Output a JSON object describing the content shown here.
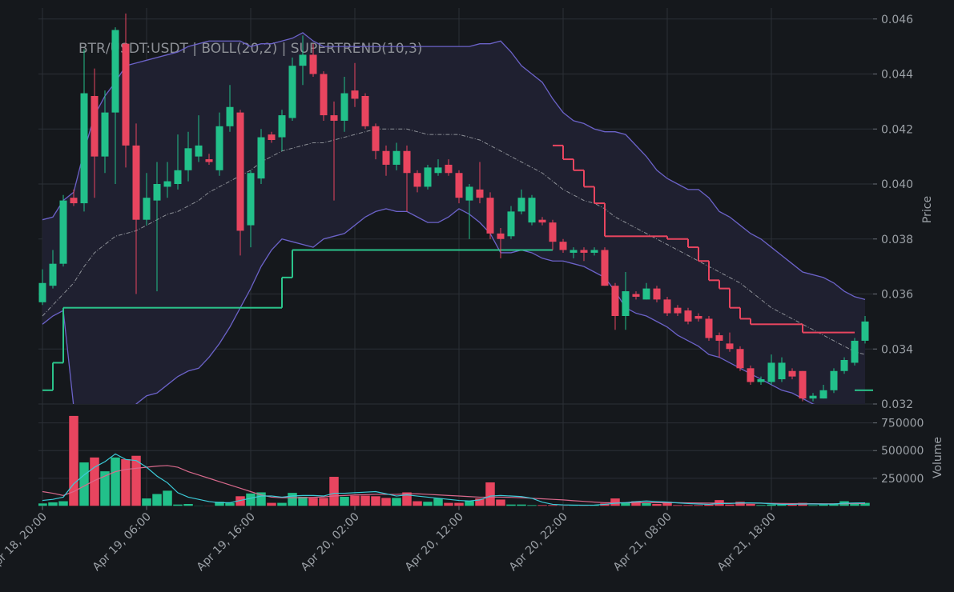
{
  "chart_data": {
    "type": "candlestick",
    "title": "BTR/USDT:USDT | BOLL(20,2) | SUPERTREND(10,3)",
    "ylabel": "Price",
    "x": [
      "Apr 18, 20:00",
      "Apr 18, 21:00",
      "Apr 18, 22:00",
      "Apr 18, 23:00",
      "Apr 19, 00:00",
      "Apr 19, 01:00",
      "Apr 19, 02:00",
      "Apr 19, 03:00",
      "Apr 19, 04:00",
      "Apr 19, 05:00",
      "Apr 19, 06:00",
      "Apr 19, 07:00",
      "Apr 19, 08:00",
      "Apr 19, 09:00",
      "Apr 19, 10:00",
      "Apr 19, 11:00",
      "Apr 19, 12:00",
      "Apr 19, 13:00",
      "Apr 19, 14:00",
      "Apr 19, 15:00",
      "Apr 19, 16:00",
      "Apr 19, 17:00",
      "Apr 19, 18:00",
      "Apr 19, 19:00",
      "Apr 19, 20:00",
      "Apr 19, 21:00",
      "Apr 19, 22:00",
      "Apr 19, 23:00",
      "Apr 20, 00:00",
      "Apr 20, 01:00",
      "Apr 20, 02:00",
      "Apr 20, 03:00",
      "Apr 20, 04:00",
      "Apr 20, 05:00",
      "Apr 20, 06:00",
      "Apr 20, 07:00",
      "Apr 20, 08:00",
      "Apr 20, 09:00",
      "Apr 20, 10:00",
      "Apr 20, 11:00",
      "Apr 20, 12:00",
      "Apr 20, 13:00",
      "Apr 20, 14:00",
      "Apr 20, 15:00",
      "Apr 20, 16:00",
      "Apr 20, 17:00",
      "Apr 20, 18:00",
      "Apr 20, 19:00",
      "Apr 20, 20:00",
      "Apr 20, 21:00",
      "Apr 20, 22:00",
      "Apr 20, 23:00",
      "Apr 21, 00:00",
      "Apr 21, 01:00",
      "Apr 21, 02:00",
      "Apr 21, 03:00",
      "Apr 21, 04:00",
      "Apr 21, 05:00",
      "Apr 21, 06:00",
      "Apr 21, 07:00",
      "Apr 21, 08:00",
      "Apr 21, 09:00",
      "Apr 21, 10:00",
      "Apr 21, 11:00",
      "Apr 21, 12:00",
      "Apr 21, 13:00",
      "Apr 21, 14:00",
      "Apr 21, 15:00",
      "Apr 21, 16:00",
      "Apr 21, 17:00",
      "Apr 21, 18:00",
      "Apr 21, 19:00",
      "Apr 21, 20:00",
      "Apr 21, 21:00",
      "Apr 21, 22:00",
      "Apr 21, 23:00",
      "Apr 22, 00:00",
      "Apr 22, 01:00",
      "Apr 22, 02:00",
      "Apr 22, 03:00"
    ],
    "xticks": [
      "Apr 18, 20:00",
      "Apr 19, 06:00",
      "Apr 19, 16:00",
      "Apr 20, 02:00",
      "Apr 20, 12:00",
      "Apr 20, 22:00",
      "Apr 21, 08:00",
      "Apr 21, 18:00"
    ],
    "open": [
      0.0357,
      0.0363,
      0.0371,
      0.0395,
      0.0393,
      0.0432,
      0.041,
      0.0426,
      0.0451,
      0.0414,
      0.0387,
      0.0394,
      0.0399,
      0.04,
      0.0405,
      0.041,
      0.0409,
      0.0405,
      0.0421,
      0.0426,
      0.0385,
      0.0402,
      0.0418,
      0.0417,
      0.0424,
      0.0443,
      0.0447,
      0.044,
      0.0425,
      0.0423,
      0.0434,
      0.0432,
      0.0421,
      0.0412,
      0.0407,
      0.0412,
      0.0404,
      0.0399,
      0.0404,
      0.0407,
      0.0404,
      0.0394,
      0.0398,
      0.0395,
      0.0382,
      0.0381,
      0.039,
      0.0386,
      0.0387,
      0.0386,
      0.0379,
      0.0375,
      0.0376,
      0.0375,
      0.0376,
      0.0363,
      0.0352,
      0.036,
      0.0358,
      0.0362,
      0.0358,
      0.0355,
      0.0354,
      0.0352,
      0.0351,
      0.0345,
      0.0342,
      0.034,
      0.0333,
      0.0328,
      0.0328,
      0.0329,
      0.0332,
      0.0332,
      0.0322,
      0.0322,
      0.0325,
      0.0332,
      0.0335,
      0.0343
    ],
    "high": [
      0.0369,
      0.0376,
      0.0396,
      0.0398,
      0.0449,
      0.0442,
      0.0434,
      0.0457,
      0.0462,
      0.0422,
      0.0404,
      0.0408,
      0.0408,
      0.0418,
      0.0419,
      0.0425,
      0.0411,
      0.0426,
      0.0436,
      0.0427,
      0.0405,
      0.042,
      0.0419,
      0.0427,
      0.0446,
      0.0454,
      0.0451,
      0.0441,
      0.043,
      0.0439,
      0.0444,
      0.0433,
      0.0422,
      0.0414,
      0.0415,
      0.0414,
      0.0405,
      0.0407,
      0.0409,
      0.0409,
      0.0405,
      0.04,
      0.0408,
      0.0397,
      0.0384,
      0.0392,
      0.0398,
      0.0396,
      0.0388,
      0.0387,
      0.038,
      0.0377,
      0.0377,
      0.0377,
      0.0377,
      0.0364,
      0.0368,
      0.0361,
      0.0364,
      0.0363,
      0.0359,
      0.0356,
      0.0355,
      0.0353,
      0.0352,
      0.0346,
      0.0346,
      0.0341,
      0.0334,
      0.033,
      0.0338,
      0.0337,
      0.0333,
      0.0332,
      0.0324,
      0.0327,
      0.0333,
      0.0337,
      0.0344,
      0.0352
    ],
    "low": [
      0.0356,
      0.0362,
      0.037,
      0.0392,
      0.039,
      0.0395,
      0.0404,
      0.04,
      0.0406,
      0.036,
      0.0385,
      0.0361,
      0.0395,
      0.0398,
      0.0401,
      0.0408,
      0.0407,
      0.0403,
      0.0419,
      0.0374,
      0.0377,
      0.04,
      0.0415,
      0.0412,
      0.0423,
      0.0436,
      0.0439,
      0.0423,
      0.0394,
      0.0419,
      0.0428,
      0.042,
      0.0409,
      0.0403,
      0.0405,
      0.039,
      0.0397,
      0.0398,
      0.0403,
      0.0403,
      0.0393,
      0.038,
      0.0393,
      0.038,
      0.0373,
      0.038,
      0.0389,
      0.0385,
      0.0385,
      0.0376,
      0.0375,
      0.0373,
      0.0372,
      0.0374,
      0.0363,
      0.0347,
      0.0347,
      0.0358,
      0.0358,
      0.0357,
      0.0352,
      0.0352,
      0.0349,
      0.035,
      0.0343,
      0.0337,
      0.0339,
      0.0332,
      0.0327,
      0.0327,
      0.0327,
      0.0328,
      0.0329,
      0.0321,
      0.0321,
      0.0322,
      0.0324,
      0.0331,
      0.0334,
      0.0342
    ],
    "close": [
      0.0364,
      0.0371,
      0.0394,
      0.0393,
      0.0433,
      0.041,
      0.0426,
      0.0456,
      0.0414,
      0.0387,
      0.0395,
      0.04,
      0.0401,
      0.0405,
      0.0413,
      0.0414,
      0.0408,
      0.0421,
      0.0428,
      0.0383,
      0.0404,
      0.0417,
      0.0416,
      0.0425,
      0.0443,
      0.0447,
      0.044,
      0.0425,
      0.0423,
      0.0433,
      0.0431,
      0.0421,
      0.0412,
      0.0407,
      0.0412,
      0.0404,
      0.0399,
      0.0406,
      0.0406,
      0.0404,
      0.0395,
      0.0399,
      0.0395,
      0.0382,
      0.038,
      0.039,
      0.0395,
      0.0395,
      0.0386,
      0.0379,
      0.0376,
      0.0376,
      0.0375,
      0.0376,
      0.0363,
      0.0352,
      0.0361,
      0.0359,
      0.0362,
      0.0358,
      0.0353,
      0.0353,
      0.035,
      0.0351,
      0.0344,
      0.0343,
      0.034,
      0.0333,
      0.0328,
      0.0329,
      0.0335,
      0.0335,
      0.033,
      0.0322,
      0.0323,
      0.0325,
      0.0332,
      0.0336,
      0.0343,
      0.035
    ],
    "up_color": "#22c08a",
    "down_color": "#e8455f",
    "ylim": [
      0.032,
      0.0464
    ],
    "yticks": [
      0.032,
      0.034,
      0.036,
      0.038,
      {
        "value": 0.04,
        "label": "0.040"
      },
      0.042,
      0.044,
      0.046
    ],
    "grid": true,
    "bollinger": {
      "color": "#6b62c8",
      "mid_color": "#8c8f96",
      "fill": "#1f2030",
      "upper": [
        0.0387,
        0.0388,
        0.0394,
        0.0397,
        0.0412,
        0.0425,
        0.0432,
        0.0437,
        0.0443,
        0.0444,
        0.0445,
        0.0446,
        0.0447,
        0.0448,
        0.045,
        0.0451,
        0.0452,
        0.0452,
        0.0452,
        0.0452,
        0.045,
        0.0451,
        0.0451,
        0.0452,
        0.0453,
        0.0455,
        0.0452,
        0.045,
        0.045,
        0.045,
        0.045,
        0.045,
        0.045,
        0.045,
        0.045,
        0.045,
        0.045,
        0.045,
        0.045,
        0.045,
        0.045,
        0.045,
        0.0451,
        0.0451,
        0.0452,
        0.0448,
        0.0443,
        0.044,
        0.0437,
        0.0431,
        0.0426,
        0.0423,
        0.0422,
        0.042,
        0.0419,
        0.0419,
        0.0418,
        0.0414,
        0.041,
        0.0405,
        0.0402,
        0.04,
        0.0398,
        0.0398,
        0.0395,
        0.039,
        0.0388,
        0.0385,
        0.0382,
        0.038,
        0.0377,
        0.0374,
        0.0371,
        0.0368,
        0.0367,
        0.0366,
        0.0364,
        0.0361,
        0.0359,
        0.0358
      ],
      "middle": [
        0.0352,
        0.0356,
        0.036,
        0.0364,
        0.037,
        0.0375,
        0.0378,
        0.0381,
        0.0382,
        0.0383,
        0.0385,
        0.0387,
        0.0389,
        0.039,
        0.0392,
        0.0394,
        0.0397,
        0.0399,
        0.0401,
        0.0403,
        0.0405,
        0.0408,
        0.041,
        0.0412,
        0.0413,
        0.0414,
        0.0415,
        0.0415,
        0.0416,
        0.0417,
        0.0418,
        0.0419,
        0.042,
        0.042,
        0.042,
        0.042,
        0.0419,
        0.0418,
        0.0418,
        0.0418,
        0.0418,
        0.0417,
        0.0416,
        0.0414,
        0.0412,
        0.041,
        0.0408,
        0.0406,
        0.0404,
        0.0401,
        0.0398,
        0.0396,
        0.0394,
        0.0393,
        0.0391,
        0.0388,
        0.0386,
        0.0384,
        0.0382,
        0.038,
        0.0378,
        0.0376,
        0.0374,
        0.0372,
        0.037,
        0.0368,
        0.0366,
        0.0364,
        0.0361,
        0.0358,
        0.0355,
        0.0353,
        0.0351,
        0.0349,
        0.0347,
        0.0345,
        0.0343,
        0.0341,
        0.0339,
        0.0338
      ],
      "lower": [
        0.0349,
        0.0352,
        0.0354,
        0.0319,
        0.0312,
        0.0309,
        0.031,
        0.0313,
        0.0316,
        0.032,
        0.0323,
        0.0324,
        0.0327,
        0.033,
        0.0332,
        0.0333,
        0.0337,
        0.0342,
        0.0348,
        0.0355,
        0.0362,
        0.037,
        0.0376,
        0.038,
        0.0379,
        0.0378,
        0.0377,
        0.038,
        0.0381,
        0.0382,
        0.0385,
        0.0388,
        0.039,
        0.0391,
        0.039,
        0.039,
        0.0388,
        0.0386,
        0.0386,
        0.0388,
        0.0391,
        0.0389,
        0.0386,
        0.0382,
        0.0375,
        0.0375,
        0.0376,
        0.0375,
        0.0373,
        0.0372,
        0.0372,
        0.0371,
        0.037,
        0.0368,
        0.0366,
        0.0361,
        0.0355,
        0.0353,
        0.0352,
        0.035,
        0.0348,
        0.0345,
        0.0343,
        0.0341,
        0.0338,
        0.0337,
        0.0335,
        0.0333,
        0.0331,
        0.0329,
        0.0327,
        0.0325,
        0.0324,
        0.0322,
        0.032,
        0.0319,
        0.0318,
        0.0317,
        0.0316,
        0.0315
      ]
    },
    "supertrend": [
      {
        "color": "#2bc48b",
        "values": [
          0.0325,
          0.0335,
          0.0355,
          0.0355,
          0.0355,
          0.0355,
          0.0355,
          0.0355,
          0.0355,
          0.0355,
          0.0355,
          0.0355,
          0.0355,
          0.0355,
          0.0355,
          0.0355,
          0.0355,
          0.0355,
          0.0355,
          0.0355,
          0.0355,
          0.0355,
          0.0355,
          0.0366,
          0.0376,
          0.0376,
          0.0376,
          0.0376,
          0.0376,
          0.0376,
          0.0376,
          0.0376,
          0.0376,
          0.0376,
          0.0376,
          0.0376,
          0.0376,
          0.0376,
          0.0376,
          0.0376,
          0.0376,
          0.0376,
          0.0376,
          0.0376,
          0.0376,
          0.0376,
          0.0376,
          0.0376,
          0.0376,
          null,
          null,
          null,
          null,
          null,
          null,
          null,
          null,
          null,
          null,
          null,
          null,
          null,
          null,
          null,
          null,
          null,
          null,
          null,
          null,
          null,
          null,
          null,
          null,
          null,
          null,
          null,
          null,
          null,
          0.0325,
          0.0325
        ]
      },
      {
        "color": "#e8455f",
        "values": [
          null,
          null,
          null,
          null,
          null,
          null,
          null,
          null,
          null,
          null,
          null,
          null,
          null,
          null,
          null,
          null,
          null,
          null,
          null,
          null,
          null,
          null,
          null,
          null,
          null,
          null,
          null,
          null,
          null,
          null,
          null,
          null,
          null,
          null,
          null,
          null,
          null,
          null,
          null,
          null,
          null,
          null,
          null,
          null,
          null,
          null,
          null,
          null,
          null,
          0.0414,
          0.0409,
          0.0405,
          0.0399,
          0.0393,
          0.0381,
          0.0381,
          0.0381,
          0.0381,
          0.0381,
          0.0381,
          0.038,
          0.038,
          0.0377,
          0.0372,
          0.0365,
          0.0362,
          0.0355,
          0.0351,
          0.0349,
          0.0349,
          0.0349,
          0.0349,
          0.0349,
          0.0346,
          0.0346,
          0.0346,
          0.0346,
          0.0346,
          null,
          null
        ]
      }
    ],
    "volume": {
      "ylabel": "Volume",
      "ylim": [
        0,
        870000
      ],
      "yticks": [
        250000,
        500000,
        750000
      ],
      "values": [
        25000,
        35000,
        45000,
        815000,
        395000,
        440000,
        315000,
        440000,
        425000,
        455000,
        70000,
        110000,
        140000,
        15000,
        20000,
        5000,
        5000,
        40000,
        30000,
        90000,
        115000,
        125000,
        30000,
        30000,
        120000,
        85000,
        75000,
        75000,
        265000,
        85000,
        95000,
        95000,
        90000,
        75000,
        75000,
        125000,
        45000,
        40000,
        70000,
        30000,
        30000,
        45000,
        70000,
        215000,
        60000,
        15000,
        15000,
        10000,
        10000,
        10000,
        5000,
        5000,
        5000,
        10000,
        25000,
        70000,
        30000,
        45000,
        30000,
        20000,
        40000,
        10000,
        10000,
        10000,
        15000,
        55000,
        15000,
        40000,
        20000,
        10000,
        15000,
        15000,
        15000,
        30000,
        10000,
        15000,
        20000,
        45000,
        25000,
        30000
      ],
      "ma": [
        {
          "color": "#d9698c",
          "values": [
            130000,
            115000,
            95000,
            130000,
            180000,
            230000,
            270000,
            310000,
            330000,
            340000,
            350000,
            360000,
            365000,
            350000,
            310000,
            280000,
            250000,
            220000,
            190000,
            160000,
            130000,
            100000,
            80000,
            75000,
            75000,
            75000,
            78000,
            82000,
            90000,
            95000,
            100000,
            102000,
            105000,
            105000,
            105000,
            110000,
            110000,
            105000,
            100000,
            95000,
            90000,
            85000,
            80000,
            80000,
            80000,
            78000,
            75000,
            70000,
            65000,
            60000,
            55000,
            48000,
            42000,
            35000,
            30000,
            30000,
            30000,
            30000,
            30000,
            30000,
            30000,
            30000,
            28000,
            27000,
            26000,
            26000,
            25000,
            25000,
            25000,
            25000,
            24000,
            23000,
            22000,
            22000,
            21000,
            20000,
            20000,
            21000,
            22000,
            22000
          ]
        },
        {
          "color": "#3ccbd8",
          "values": [
            50000,
            60000,
            80000,
            200000,
            280000,
            350000,
            400000,
            470000,
            420000,
            410000,
            350000,
            270000,
            210000,
            120000,
            80000,
            60000,
            40000,
            30000,
            30000,
            50000,
            70000,
            90000,
            90000,
            80000,
            90000,
            95000,
            95000,
            90000,
            115000,
            115000,
            120000,
            125000,
            130000,
            110000,
            90000,
            100000,
            90000,
            80000,
            70000,
            60000,
            50000,
            45000,
            55000,
            90000,
            95000,
            90000,
            85000,
            70000,
            35000,
            15000,
            10000,
            8000,
            7000,
            8000,
            15000,
            25000,
            30000,
            40000,
            45000,
            40000,
            35000,
            28000,
            22000,
            18000,
            15000,
            22000,
            22000,
            28000,
            28000,
            26000,
            20000,
            15000,
            15000,
            18000,
            18000,
            17000,
            18000,
            25000,
            27000,
            28000
          ]
        }
      ]
    }
  }
}
